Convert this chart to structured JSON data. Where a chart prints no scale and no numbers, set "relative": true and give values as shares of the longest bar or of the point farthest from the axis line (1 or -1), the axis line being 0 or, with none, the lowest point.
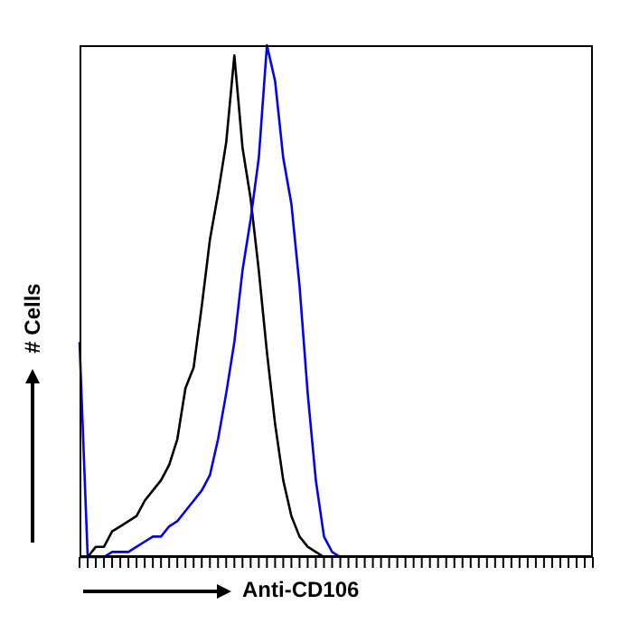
{
  "chart_data": {
    "type": "line",
    "relative": true,
    "xlabel": "Anti-CD106",
    "ylabel": "# Cells",
    "marker": "none",
    "categories": [
      null,
      null,
      null,
      null,
      null,
      null,
      null,
      null,
      null,
      null,
      null,
      null,
      null,
      null,
      null,
      null,
      null,
      null,
      null,
      null,
      null,
      null,
      null,
      null,
      null,
      null,
      null,
      null,
      null,
      null,
      null,
      null,
      null,
      null,
      null,
      null,
      null,
      null,
      null,
      null,
      null,
      null,
      null,
      null,
      null,
      null,
      null,
      null,
      null,
      null,
      null,
      null,
      null,
      null,
      null,
      null,
      null,
      null,
      null,
      null,
      null,
      null,
      null,
      null
    ],
    "series": [
      {
        "color": "#000000",
        "values": [
          0,
          0,
          0.02,
          0.02,
          0.05,
          0.06,
          0.07,
          0.08,
          0.11,
          0.13,
          0.15,
          0.18,
          0.23,
          0.33,
          0.37,
          0.49,
          0.62,
          0.71,
          0.81,
          0.98,
          0.8,
          0.7,
          0.56,
          0.4,
          0.26,
          0.15,
          0.08,
          0.04,
          0.02,
          0.01,
          0,
          null,
          null,
          null,
          null,
          null,
          null,
          null,
          null,
          null,
          null,
          null,
          null,
          null,
          null,
          null,
          null,
          null,
          null,
          null,
          null,
          null,
          null,
          null,
          null,
          null,
          null,
          null,
          null,
          null,
          null,
          null,
          null,
          null
        ]
      },
      {
        "color": "#0000ff",
        "values": [
          0.42,
          0,
          0,
          0,
          0.01,
          0.01,
          0.01,
          0.02,
          0.03,
          0.04,
          0.04,
          0.06,
          0.07,
          0.09,
          0.11,
          0.13,
          0.16,
          0.23,
          0.32,
          0.42,
          0.56,
          0.66,
          0.78,
          1,
          0.93,
          0.78,
          0.69,
          0.53,
          0.32,
          0.15,
          0.04,
          0.01,
          0,
          null,
          null,
          null,
          null,
          null,
          null,
          null,
          null,
          null,
          null,
          null,
          null,
          null,
          null,
          null,
          null,
          null,
          null,
          null,
          null,
          null,
          null,
          null,
          null,
          null,
          null,
          null,
          null,
          null,
          null,
          null
        ]
      }
    ]
  }
}
